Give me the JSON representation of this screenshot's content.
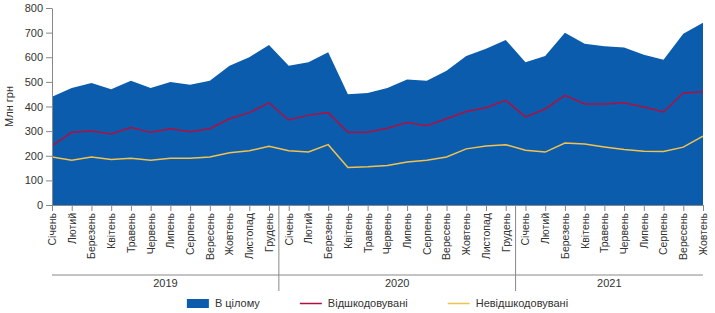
{
  "chart_data": {
    "type": "line",
    "y_label": "Млн грн",
    "categories": [
      "Січень",
      "Лютий",
      "Березень",
      "Квітень",
      "Травень",
      "Червень",
      "Липень",
      "Серпень",
      "Вересень",
      "Жовтень",
      "Листопад",
      "Грудень",
      "Січень",
      "Лютий",
      "Березень",
      "Квітень",
      "Травень",
      "Червень",
      "Липень",
      "Серпень",
      "Вересень",
      "Жовтень",
      "Листопад",
      "Грудень",
      "Січень",
      "Лютий",
      "Березень",
      "Квітень",
      "Травень",
      "Червень",
      "Липень",
      "Серпень",
      "Вересень",
      "Жовтень"
    ],
    "x_groups": [
      {
        "label": "2019",
        "size": 12
      },
      {
        "label": "2020",
        "size": 12
      },
      {
        "label": "2021",
        "size": 10
      }
    ],
    "series": [
      {
        "name": "В цілому",
        "type": "area",
        "color": "#0b5cad",
        "values": [
          440,
          475,
          495,
          470,
          505,
          475,
          500,
          488,
          505,
          565,
          600,
          650,
          565,
          580,
          620,
          450,
          455,
          475,
          510,
          505,
          545,
          605,
          635,
          670,
          580,
          605,
          700,
          655,
          645,
          640,
          610,
          590,
          695,
          740
        ]
      },
      {
        "name": "Відшкодовувані",
        "type": "line",
        "color": "#b01040",
        "values": [
          240,
          295,
          300,
          288,
          315,
          295,
          310,
          298,
          310,
          350,
          375,
          415,
          345,
          365,
          375,
          295,
          295,
          312,
          335,
          322,
          350,
          380,
          395,
          425,
          358,
          390,
          445,
          410,
          410,
          415,
          398,
          378,
          455,
          460
        ]
      },
      {
        "name": "Невідшкодовувані",
        "type": "line",
        "color": "#f2c24e",
        "values": [
          195,
          182,
          195,
          185,
          190,
          182,
          190,
          190,
          195,
          212,
          220,
          238,
          220,
          215,
          245,
          152,
          155,
          160,
          175,
          182,
          195,
          228,
          240,
          245,
          222,
          215,
          252,
          248,
          236,
          225,
          218,
          217,
          235,
          280
        ]
      }
    ],
    "ylim": [
      0,
      800
    ],
    "yticks": [
      0,
      100,
      200,
      300,
      400,
      500,
      600,
      700,
      800
    ],
    "grid": false,
    "legend": "bottom"
  }
}
